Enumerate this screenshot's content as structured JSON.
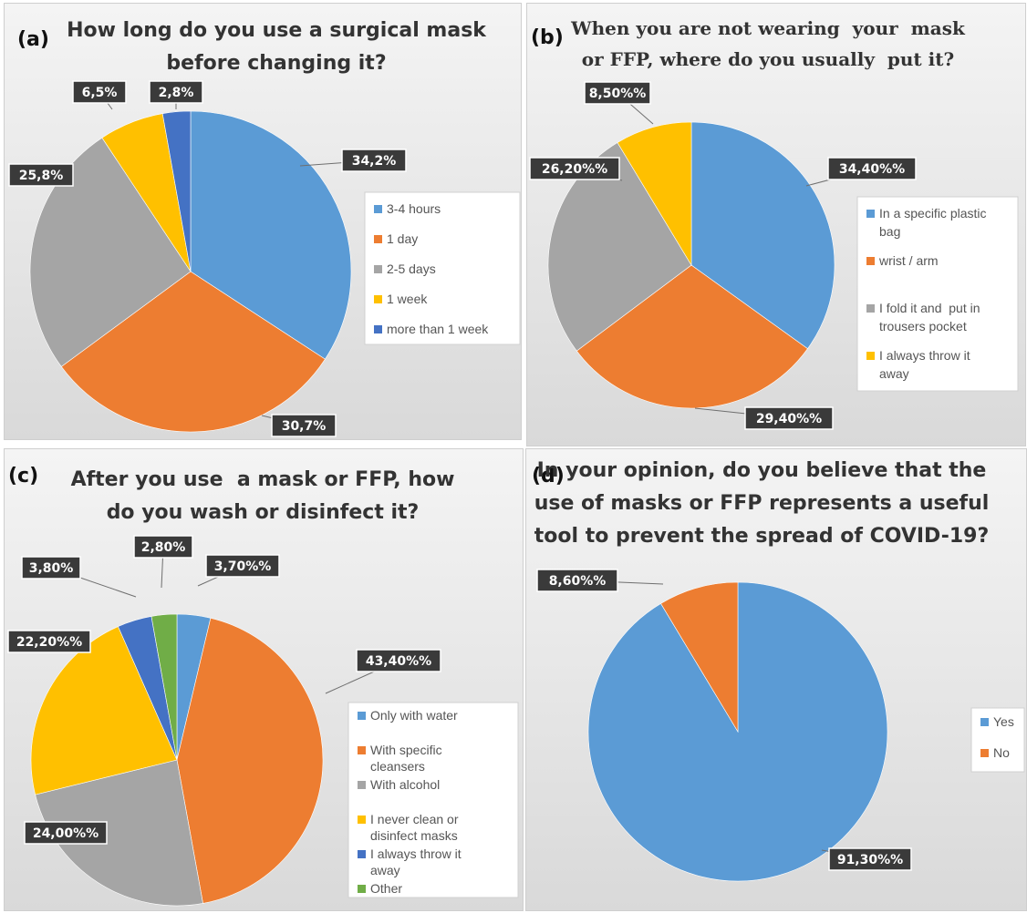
{
  "colors": {
    "blue": "#5b9bd5",
    "orange": "#ed7d31",
    "gray": "#a5a5a5",
    "yellow": "#ffc000",
    "dark_blue": "#4472c4",
    "green": "#70ad47"
  },
  "chart_data": [
    {
      "type": "pie",
      "panel_letter": "(a)",
      "title_lines": [
        "How long do you use a surgical mask",
        "before changing it?"
      ],
      "categories": [
        "3-4 hours",
        "1 day",
        "2-5 days",
        "1 week",
        "more than 1 week"
      ],
      "values": [
        34.2,
        30.7,
        25.8,
        6.5,
        2.8
      ],
      "data_labels": [
        "34,2%",
        "30,7%",
        "25,8%",
        "6,5%",
        "2,8%"
      ],
      "series_colors": [
        "blue",
        "orange",
        "gray",
        "yellow",
        "dark_blue"
      ],
      "legend": [
        {
          "lines": [
            "3-4 hours"
          ],
          "color": "blue"
        },
        {
          "lines": [
            "1 day"
          ],
          "color": "orange"
        },
        {
          "lines": [
            "2-5 days"
          ],
          "color": "gray"
        },
        {
          "lines": [
            "1 week"
          ],
          "color": "yellow"
        },
        {
          "lines": [
            "more than 1 week"
          ],
          "color": "dark_blue"
        }
      ],
      "legend_position": "right"
    },
    {
      "type": "pie",
      "panel_letter": "(b)",
      "title_lines": [
        "When you are not wearing  your  mask",
        "or FFP, where do you usually  put it?"
      ],
      "categories": [
        "In a specific plastic bag",
        "wrist / arm",
        "I fold it and  put in trousers pocket",
        "I always throw it away"
      ],
      "values": [
        34.4,
        29.4,
        26.2,
        8.5
      ],
      "data_labels": [
        "34,40%%",
        "29,40%%",
        "26,20%%",
        "8,50%%"
      ],
      "series_colors": [
        "blue",
        "orange",
        "gray",
        "yellow"
      ],
      "legend": [
        {
          "lines": [
            "In a specific plastic",
            "bag"
          ],
          "color": "blue"
        },
        {
          "lines": [
            "wrist / arm"
          ],
          "color": "orange"
        },
        {
          "lines": [
            "I fold it and  put in",
            "trousers pocket"
          ],
          "color": "gray"
        },
        {
          "lines": [
            "I always throw it",
            "away"
          ],
          "color": "yellow"
        }
      ],
      "legend_position": "right"
    },
    {
      "type": "pie",
      "panel_letter": "(c)",
      "title_lines": [
        "After you use  a mask or FFP, how",
        "do you wash or disinfect it?"
      ],
      "categories": [
        "Only with water",
        "With specific cleansers",
        "With alcohol",
        "I never clean or disinfect masks",
        "I always throw it away",
        "Other"
      ],
      "values": [
        3.7,
        43.4,
        24.0,
        22.2,
        3.8,
        2.8
      ],
      "data_labels": [
        "3,70%%",
        "43,40%%",
        "24,00%%",
        "22,20%%",
        "3,80%",
        "2,80%"
      ],
      "series_colors": [
        "blue",
        "orange",
        "gray",
        "yellow",
        "dark_blue",
        "green"
      ],
      "legend": [
        {
          "lines": [
            "Only with water"
          ],
          "color": "blue"
        },
        {
          "lines": [
            "With specific",
            "cleansers"
          ],
          "color": "orange"
        },
        {
          "lines": [
            "With alcohol"
          ],
          "color": "gray"
        },
        {
          "lines": [
            "I never clean or",
            "disinfect masks"
          ],
          "color": "yellow"
        },
        {
          "lines": [
            "I always throw it",
            "away"
          ],
          "color": "dark_blue"
        },
        {
          "lines": [
            "Other"
          ],
          "color": "green"
        }
      ],
      "legend_position": "right"
    },
    {
      "type": "pie",
      "panel_letter": "(d)",
      "title_lines": [
        "In your opinion, do you believe that the",
        "use of masks or FFP represents a useful",
        "tool to prevent the spread of COVID-19?"
      ],
      "categories": [
        "Yes",
        "No"
      ],
      "values": [
        91.3,
        8.6
      ],
      "data_labels": [
        "91,30%%",
        "8,60%%"
      ],
      "series_colors": [
        "blue",
        "orange"
      ],
      "legend": [
        {
          "lines": [
            "Yes"
          ],
          "color": "blue"
        },
        {
          "lines": [
            "No"
          ],
          "color": "orange"
        }
      ],
      "legend_position": "right"
    }
  ]
}
